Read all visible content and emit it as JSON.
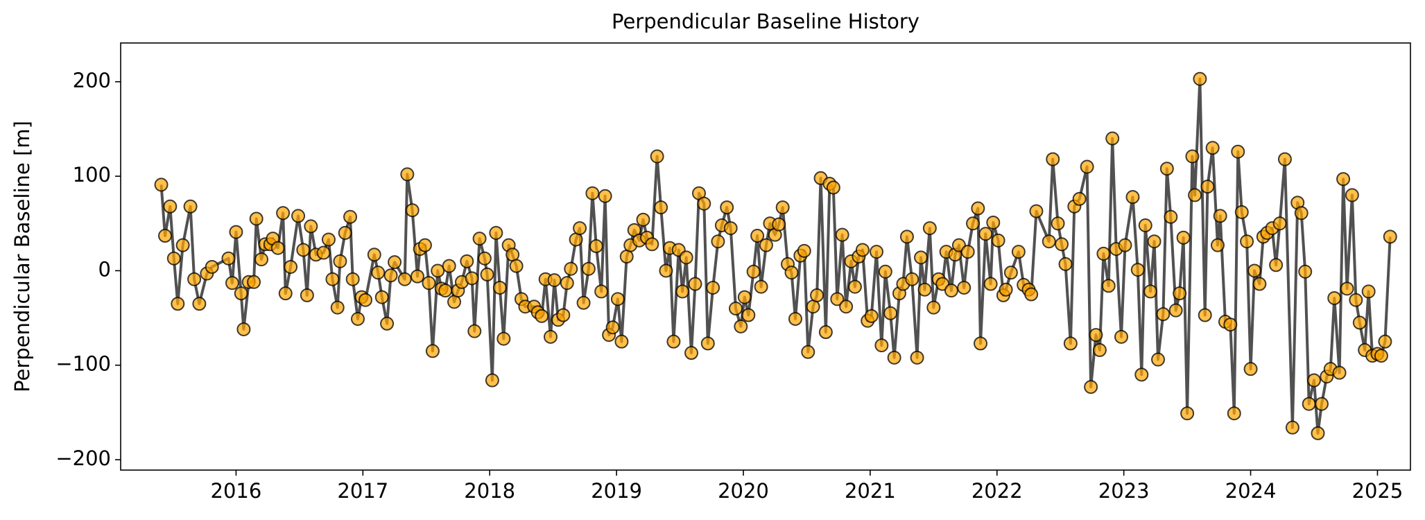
{
  "chart_data": {
    "type": "line",
    "title": "Perpendicular Baseline History",
    "y_label": "Perpendicular Baseline [m]",
    "color": "#ffa500",
    "line_color": "#333333",
    "grid": false,
    "xlim": [
      2015.09,
      2025.26
    ],
    "ylim": [
      -211,
      241
    ],
    "xticks": [
      2016,
      2017,
      2018,
      2019,
      2020,
      2021,
      2022,
      2023,
      2024,
      2025
    ],
    "yticks": [
      {
        "value": -200,
        "label": "−200"
      },
      {
        "value": -100,
        "label": "−100"
      },
      0,
      100,
      200
    ],
    "x": [
      2015.41,
      2015.44,
      2015.48,
      2015.51,
      2015.54,
      2015.58,
      2015.64,
      2015.67,
      2015.71,
      2015.77,
      2015.81,
      2015.94,
      2015.97,
      2016.0,
      2016.04,
      2016.06,
      2016.1,
      2016.14,
      2016.16,
      2016.2,
      2016.23,
      2016.27,
      2016.29,
      2016.33,
      2016.37,
      2016.39,
      2016.43,
      2016.49,
      2016.53,
      2016.56,
      2016.59,
      2016.63,
      2016.69,
      2016.73,
      2016.76,
      2016.8,
      2016.82,
      2016.86,
      2016.9,
      2016.92,
      2016.96,
      2016.99,
      2017.02,
      2017.09,
      2017.12,
      2017.15,
      2017.19,
      2017.22,
      2017.25,
      2017.33,
      2017.35,
      2017.39,
      2017.43,
      2017.45,
      2017.49,
      2017.52,
      2017.55,
      2017.59,
      2017.62,
      2017.65,
      2017.68,
      2017.72,
      2017.75,
      2017.78,
      2017.82,
      2017.86,
      2017.88,
      2017.92,
      2017.96,
      2017.98,
      2018.02,
      2018.05,
      2018.08,
      2018.11,
      2018.15,
      2018.18,
      2018.21,
      2018.25,
      2018.28,
      2018.35,
      2018.38,
      2018.41,
      2018.44,
      2018.48,
      2018.51,
      2018.54,
      2018.58,
      2018.61,
      2018.64,
      2018.68,
      2018.71,
      2018.74,
      2018.78,
      2018.81,
      2018.84,
      2018.88,
      2018.91,
      2018.94,
      2018.97,
      2019.01,
      2019.04,
      2019.08,
      2019.11,
      2019.14,
      2019.18,
      2019.21,
      2019.24,
      2019.28,
      2019.32,
      2019.35,
      2019.39,
      2019.42,
      2019.45,
      2019.49,
      2019.52,
      2019.55,
      2019.59,
      2019.62,
      2019.65,
      2019.69,
      2019.72,
      2019.76,
      2019.8,
      2019.83,
      2019.87,
      2019.9,
      2019.94,
      2019.98,
      2020.01,
      2020.04,
      2020.08,
      2020.11,
      2020.14,
      2020.18,
      2020.21,
      2020.25,
      2020.28,
      2020.31,
      2020.35,
      2020.38,
      2020.41,
      2020.45,
      2020.48,
      2020.51,
      2020.55,
      2020.58,
      2020.61,
      2020.65,
      2020.68,
      2020.71,
      2020.74,
      2020.78,
      2020.81,
      2020.85,
      2020.88,
      2020.91,
      2020.94,
      2020.98,
      2021.01,
      2021.05,
      2021.09,
      2021.12,
      2021.16,
      2021.19,
      2021.23,
      2021.26,
      2021.29,
      2021.33,
      2021.37,
      2021.4,
      2021.43,
      2021.47,
      2021.5,
      2021.54,
      2021.57,
      2021.6,
      2021.64,
      2021.67,
      2021.7,
      2021.74,
      2021.77,
      2021.81,
      2021.85,
      2021.87,
      2021.91,
      2021.95,
      2021.97,
      2022.01,
      2022.05,
      2022.07,
      2022.11,
      2022.17,
      2022.21,
      2022.25,
      2022.27,
      2022.31,
      2022.41,
      2022.44,
      2022.48,
      2022.51,
      2022.54,
      2022.58,
      2022.61,
      2022.65,
      2022.71,
      2022.74,
      2022.78,
      2022.81,
      2022.84,
      2022.88,
      2022.91,
      2022.94,
      2022.98,
      2023.01,
      2023.07,
      2023.11,
      2023.14,
      2023.17,
      2023.21,
      2023.24,
      2023.27,
      2023.31,
      2023.34,
      2023.37,
      2023.41,
      2023.44,
      2023.47,
      2023.5,
      2023.54,
      2023.56,
      2023.6,
      2023.64,
      2023.66,
      2023.7,
      2023.74,
      2023.76,
      2023.8,
      2023.84,
      2023.87,
      2023.9,
      2023.93,
      2023.97,
      2024.0,
      2024.03,
      2024.07,
      2024.1,
      2024.13,
      2024.17,
      2024.2,
      2024.23,
      2024.27,
      2024.33,
      2024.37,
      2024.4,
      2024.43,
      2024.46,
      2024.5,
      2024.53,
      2024.56,
      2024.6,
      2024.63,
      2024.66,
      2024.7,
      2024.73,
      2024.76,
      2024.8,
      2024.83,
      2024.86,
      2024.9,
      2024.93,
      2024.96,
      2025.0,
      2025.03,
      2025.06,
      2025.1
    ],
    "values": [
      91,
      37,
      68,
      13,
      -35,
      27,
      68,
      -9,
      -35,
      -3,
      4,
      13,
      -13,
      41,
      -24,
      -62,
      -12,
      -12,
      55,
      12,
      28,
      28,
      34,
      24,
      61,
      -24,
      4,
      58,
      22,
      -26,
      47,
      17,
      19,
      33,
      -9,
      -39,
      10,
      40,
      57,
      -9,
      -51,
      -28,
      -31,
      17,
      -2,
      -28,
      -56,
      -5,
      9,
      -9,
      102,
      64,
      -6,
      23,
      27,
      -13,
      -85,
      0,
      -19,
      -21,
      5,
      -33,
      -21,
      -12,
      10,
      -8,
      -64,
      34,
      13,
      -4,
      -116,
      40,
      -18,
      -72,
      27,
      17,
      5,
      -30,
      -38,
      -38,
      -44,
      -48,
      -9,
      -70,
      -10,
      -52,
      -47,
      -13,
      2,
      33,
      45,
      -34,
      2,
      82,
      26,
      -22,
      79,
      -68,
      -60,
      -30,
      -75,
      15,
      27,
      43,
      32,
      54,
      35,
      28,
      121,
      67,
      0,
      24,
      -75,
      22,
      -22,
      14,
      -87,
      -14,
      82,
      71,
      -77,
      -18,
      31,
      48,
      67,
      45,
      -40,
      -59,
      -28,
      -47,
      -1,
      37,
      -17,
      27,
      50,
      38,
      49,
      67,
      7,
      -2,
      -51,
      16,
      21,
      -86,
      -38,
      -26,
      98,
      -65,
      92,
      88,
      -30,
      38,
      -38,
      10,
      -17,
      15,
      22,
      -53,
      -48,
      20,
      -79,
      -1,
      -45,
      -92,
      -24,
      -14,
      36,
      -9,
      -92,
      14,
      -20,
      45,
      -39,
      -9,
      -14,
      20,
      -21,
      17,
      27,
      -18,
      20,
      50,
      66,
      -77,
      39,
      -14,
      51,
      32,
      -26,
      -20,
      -2,
      20,
      -15,
      -20,
      -25,
      63,
      31,
      118,
      50,
      28,
      7,
      -77,
      68,
      76,
      110,
      -123,
      -68,
      -84,
      18,
      -16,
      140,
      23,
      -70,
      27,
      78,
      1,
      -110,
      48,
      -22,
      31,
      -94,
      -46,
      108,
      57,
      -42,
      -24,
      35,
      -151,
      121,
      80,
      203,
      -47,
      89,
      130,
      27,
      58,
      -54,
      -57,
      -151,
      126,
      62,
      31,
      -104,
      0,
      -14,
      36,
      40,
      45,
      6,
      50,
      118,
      -166,
      72,
      61,
      -1,
      -141,
      -116,
      -172,
      -141,
      -112,
      -104,
      -29,
      -108,
      97,
      -19,
      80,
      -31,
      -55,
      -84,
      -22,
      -90,
      -88,
      -90,
      -75,
      36
    ]
  }
}
